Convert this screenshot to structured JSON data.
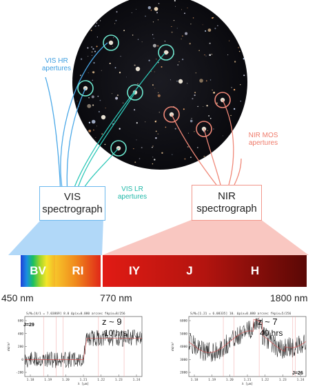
{
  "apertures": {
    "vis_hr": [
      "VIS HR",
      "apertures"
    ],
    "vis_lr": [
      "VIS LR",
      "apertures"
    ],
    "nir_mos": [
      "NIR MOS",
      "apertures"
    ]
  },
  "spectrographs": {
    "vis": [
      "VIS",
      "spectrograph"
    ],
    "nir": [
      "NIR",
      "spectrograph"
    ]
  },
  "bands": [
    "BV",
    "RI",
    "IY",
    "J",
    "H"
  ],
  "wavelengths": [
    "450 nm",
    "770 nm",
    "1800 nm"
  ],
  "colors": {
    "vis": "#4aa8e8",
    "vis_lr": "#2ec8b8",
    "nir": "#f08878",
    "circle": "#6ee7cf"
  },
  "panels": [
    {
      "header": "S/N=[4/1 = 7.03869] 8.0 Δpix=0.080 arcsec fkpix=8/256",
      "redshift": "z ~ 9",
      "exposure": "10 hrs",
      "mag": "J=29",
      "y_ticks": [
        "600",
        "400",
        "200",
        "0",
        "-200"
      ],
      "x_ticks": [
        "1.18",
        "1.19",
        "1.20",
        "1.21",
        "1.22",
        "1.23",
        "1.24"
      ],
      "x_label": "λ [μm]",
      "y_label": "nW/m²"
    },
    {
      "header": "S/N=[1.21 = 6.08335] 10. Δpix=0.080 arcsec fkpix=5/256",
      "redshift": "z ~ 7",
      "exposure": "40 hrs",
      "mag": "J=26",
      "y_ticks": [
        "6000",
        "5000",
        "4000",
        "3000",
        "2000"
      ],
      "x_ticks": [
        "1.18",
        "1.19",
        "1.20",
        "1.21",
        "1.22",
        "1.23",
        "1.24"
      ],
      "x_label": "λ [μm]",
      "y_label": "nW/m²"
    }
  ]
}
